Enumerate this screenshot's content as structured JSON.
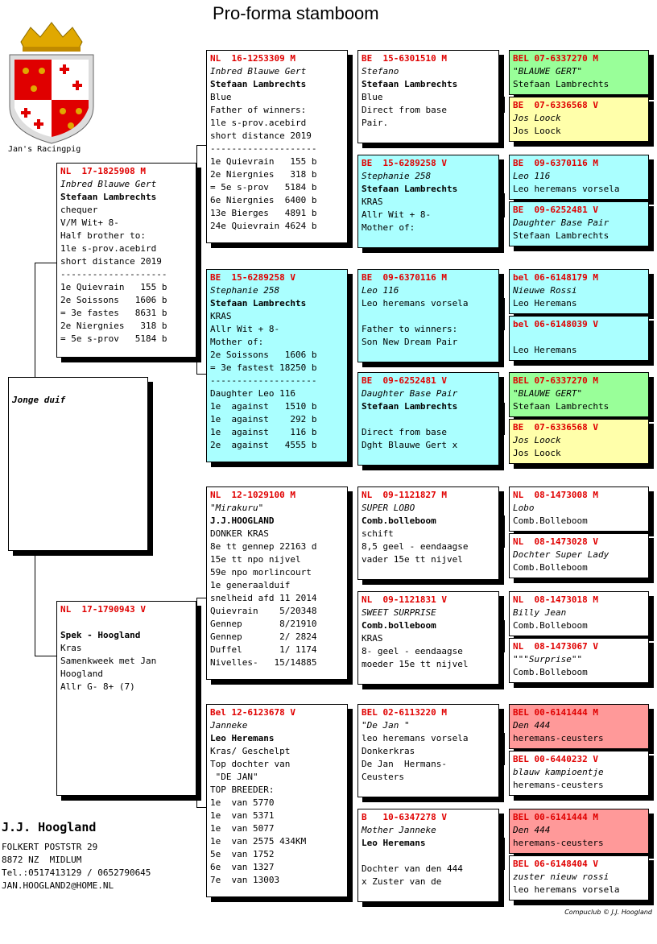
{
  "page": {
    "title": "Pro-forma stamboom",
    "crest_label": "Jan's Racingpig",
    "footer": "Compuclub © J.J. Hoogland"
  },
  "owner": {
    "name": "J.J. Hoogland",
    "lines": [
      "FOLKERT POSTSTR 29",
      "8872 NZ  MIDLUM",
      "Tel.:0517413129 / 0652790645",
      "JAN.HOOGLAND2@HOME.NL"
    ]
  },
  "colors": {
    "header": "#e00000",
    "green": "#99ff99",
    "yellow": "#ffffaa",
    "cyan": "#aaffff",
    "red": "#ff9999"
  },
  "boxes": {
    "subject": {
      "header": "",
      "name": "Jonge duif",
      "owner": "",
      "lines": []
    },
    "sire": {
      "header": "NL  17-1825908 M",
      "name": "Inbred Blauwe Gert",
      "owner": "Stefaan Lambrechts",
      "lines": [
        "chequer",
        "V/M Wit+ 8-",
        "Half brother to:",
        "1le s-prov.acebird",
        "short distance 2019",
        "--------------------",
        "1e Quievrain   155 b",
        "2e Soissons   1606 b",
        "= 3e fastes   8631 b",
        "2e Niergnies   318 b",
        "= 5e s-prov   5184 b"
      ]
    },
    "dam": {
      "header": "NL  17-1790943 V",
      "name": "",
      "owner": "Spek - Hoogland",
      "lines": [
        "Kras",
        "Samenkweek met Jan",
        "Hoogland",
        "Allr G- 8+ (7)"
      ]
    },
    "ss": {
      "header": "NL  16-1253309 M",
      "name": "Inbred Blauwe Gert",
      "owner": "Stefaan Lambrechts",
      "lines": [
        "Blue",
        "Father of winners:",
        "1le s-prov.acebird",
        "short distance 2019",
        "--------------------",
        "1e Quievrain   155 b",
        "2e Niergnies   318 b",
        "= 5e s-prov   5184 b",
        "6e Niergnies  6400 b",
        "13e Bierges   4891 b",
        "24e Quievrain 4624 b"
      ]
    },
    "sd": {
      "header": "BE  15-6289258 V",
      "name": "Stephanie 258",
      "owner": "Stefaan Lambrechts",
      "lines": [
        "KRAS",
        "Allr Wit + 8-",
        "Mother of:",
        "2e Soissons   1606 b",
        "= 3e fastest 18250 b",
        "--------------------",
        "Daughter Leo 116",
        "1e  against   1510 b",
        "1e  against    292 b",
        "1e  against    116 b",
        "2e  against   4555 b"
      ]
    },
    "ds": {
      "header": "NL  12-1029100 M",
      "name": "\"Mirakuru\"",
      "owner": "J.J.HOOGLAND",
      "lines": [
        "DONKER KRAS",
        "8e tt gennep 22163 d",
        "15e tt npo nijvel",
        "59e npo morlincourt",
        "1e generaalduif",
        "snelheid afd 11 2014",
        "Quievrain    5/20348",
        "Gennep       8/21910",
        "Gennep       2/ 2824",
        "Duffel       1/ 1174",
        "Nivelles-   15/14885"
      ]
    },
    "dd": {
      "header": "Bel 12-6123678 V",
      "name": "Janneke",
      "owner": "Leo Heremans",
      "lines": [
        "Kras/ Geschelpt",
        "Top dochter van",
        " \"DE JAN\"",
        "TOP BREEDER:",
        "1e  van 5770",
        "1e  van 5371",
        "1e  van 5077",
        "1e  van 2575 434KM",
        "5e  van 1752",
        "6e  van 1327",
        "7e  van 13003"
      ]
    },
    "sss": {
      "header": "BE  15-6301510 M",
      "name": "Stefano",
      "owner": "Stefaan Lambrechts",
      "lines": [
        "Blue",
        "Direct from base",
        "Pair."
      ]
    },
    "ssd": {
      "header": "BE  15-6289258 V",
      "name": "Stephanie 258",
      "owner": "Stefaan Lambrechts",
      "lines": [
        "KRAS",
        "Allr Wit + 8-",
        "Mother of:"
      ]
    },
    "sds": {
      "header": "BE  09-6370116 M",
      "name": "Leo 116",
      "owner": "",
      "lines": [
        "Leo heremans vorsela",
        "",
        "Father to winners:",
        "Son New Dream Pair"
      ]
    },
    "sdd": {
      "header": "BE  09-6252481 V",
      "name": "Daughter Base Pair",
      "owner": "Stefaan Lambrechts",
      "lines": [
        "",
        "Direct from base",
        "Dght Blauwe Gert x"
      ]
    },
    "dss": {
      "header": "NL  09-1121827 M",
      "name": "SUPER LOBO",
      "owner": "Comb.bolleboom",
      "lines": [
        "schift",
        "8,5 geel - eendaagse",
        "vader 15e tt nijvel"
      ]
    },
    "dsd": {
      "header": "NL  09-1121831 V",
      "name": "SWEET SURPRISE",
      "owner": "Comb.bolleboom",
      "lines": [
        "KRAS",
        "8- geel - eendaagse",
        "moeder 15e tt nijvel"
      ]
    },
    "dds": {
      "header": "BEL 02-6113220 M",
      "name": "\"De Jan \"",
      "owner": "",
      "lines": [
        "leo heremans vorsela",
        "Donkerkras",
        "De Jan  Hermans-",
        "Ceusters"
      ]
    },
    "ddd": {
      "header": "B   10-6347278 V",
      "name": "Mother Janneke",
      "owner": "Leo Heremans",
      "lines": [
        "",
        "Dochter van den 444",
        "x Zuster van de"
      ]
    },
    "g1": {
      "header": "BEL 07-6337270 M",
      "name": "\"BLAUWE GERT\"",
      "owner": "",
      "lines": [
        "Stefaan Lambrechts"
      ]
    },
    "g2": {
      "header": "BE  07-6336568 V",
      "name": "Jos Loock",
      "owner": "",
      "lines": [
        "Jos Loock"
      ]
    },
    "g3": {
      "header": "BE  09-6370116 M",
      "name": "Leo 116",
      "owner": "",
      "lines": [
        "Leo heremans vorsela"
      ]
    },
    "g4": {
      "header": "BE  09-6252481 V",
      "name": "Daughter Base Pair",
      "owner": "",
      "lines": [
        "Stefaan Lambrechts"
      ]
    },
    "g5": {
      "header": "bel 06-6148179 M",
      "name": "Nieuwe Rossi",
      "owner": "",
      "lines": [
        "Leo Heremans"
      ]
    },
    "g6": {
      "header": "bel 06-6148039 V",
      "name": "",
      "owner": "",
      "lines": [
        "",
        "Leo Heremans"
      ]
    },
    "g7": {
      "header": "BEL 07-6337270 M",
      "name": "\"BLAUWE GERT\"",
      "owner": "",
      "lines": [
        "Stefaan Lambrechts"
      ]
    },
    "g8": {
      "header": "BE  07-6336568 V",
      "name": "Jos Loock",
      "owner": "",
      "lines": [
        "Jos Loock"
      ]
    },
    "g9": {
      "header": "NL  08-1473008 M",
      "name": "Lobo",
      "owner": "",
      "lines": [
        "Comb.Bolleboom"
      ]
    },
    "g10": {
      "header": "NL  08-1473028 V",
      "name": "Dochter Super Lady",
      "owner": "",
      "lines": [
        "Comb.Bolleboom"
      ]
    },
    "g11": {
      "header": "NL  08-1473018 M",
      "name": "Billy Jean",
      "owner": "",
      "lines": [
        "Comb.Bolleboom"
      ]
    },
    "g12": {
      "header": "NL  08-1473067 V",
      "name": "\"\"\"Surprise\"\"",
      "owner": "",
      "lines": [
        "Comb.Bolleboom"
      ]
    },
    "g13": {
      "header": "BEL 00-6141444 M",
      "name": "Den 444",
      "owner": "",
      "lines": [
        "heremans-ceusters"
      ]
    },
    "g14": {
      "header": "BEL 00-6440232 V",
      "name": "blauw kampioentje",
      "owner": "",
      "lines": [
        "heremans-ceusters"
      ]
    },
    "g15": {
      "header": "BEL 00-6141444 M",
      "name": "Den 444",
      "owner": "",
      "lines": [
        "heremans-ceusters"
      ]
    },
    "g16": {
      "header": "BEL 06-6148404 V",
      "name": "zuster nieuw rossi",
      "owner": "",
      "lines": [
        "leo heremans vorsela"
      ]
    }
  }
}
